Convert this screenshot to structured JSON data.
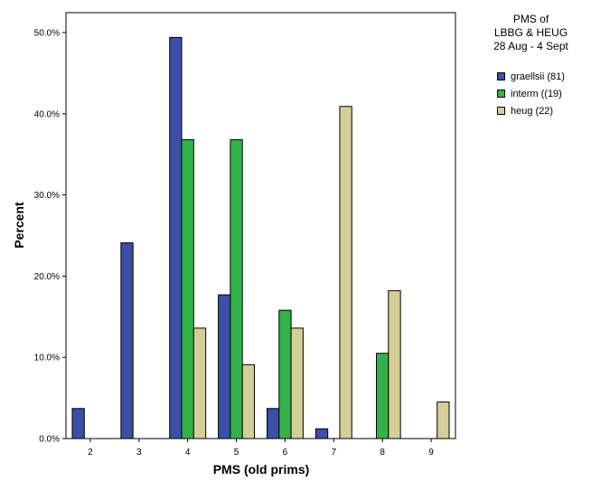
{
  "chart_data": {
    "type": "bar",
    "title_lines": [
      "PMS of",
      "LBBG & HEUG",
      "28 Aug - 4 Sept"
    ],
    "xlabel": "PMS (old prims)",
    "ylabel": "Percent",
    "categories": [
      "2",
      "3",
      "4",
      "5",
      "6",
      "7",
      "8",
      "9"
    ],
    "ylim": [
      0,
      50
    ],
    "yticks": [
      0,
      10,
      20,
      30,
      40,
      50
    ],
    "ytick_labels": [
      "0.0%",
      "10.0%",
      "20.0%",
      "30.0%",
      "40.0%",
      "50.0%"
    ],
    "grid": false,
    "legend_position": "top-right, outside plot",
    "series": [
      {
        "name": "graellsii (81)",
        "color": "#3b4fa8",
        "values": [
          3.7,
          24.1,
          49.4,
          17.7,
          3.7,
          1.2,
          0,
          0
        ]
      },
      {
        "name": "interm ((19)",
        "color": "#33b24a",
        "values": [
          0,
          0,
          36.8,
          36.8,
          15.8,
          0,
          10.5,
          0
        ]
      },
      {
        "name": "heug (22)",
        "color": "#d4cf96",
        "values": [
          0,
          0,
          13.6,
          9.1,
          13.6,
          40.9,
          18.2,
          4.5
        ]
      }
    ]
  }
}
